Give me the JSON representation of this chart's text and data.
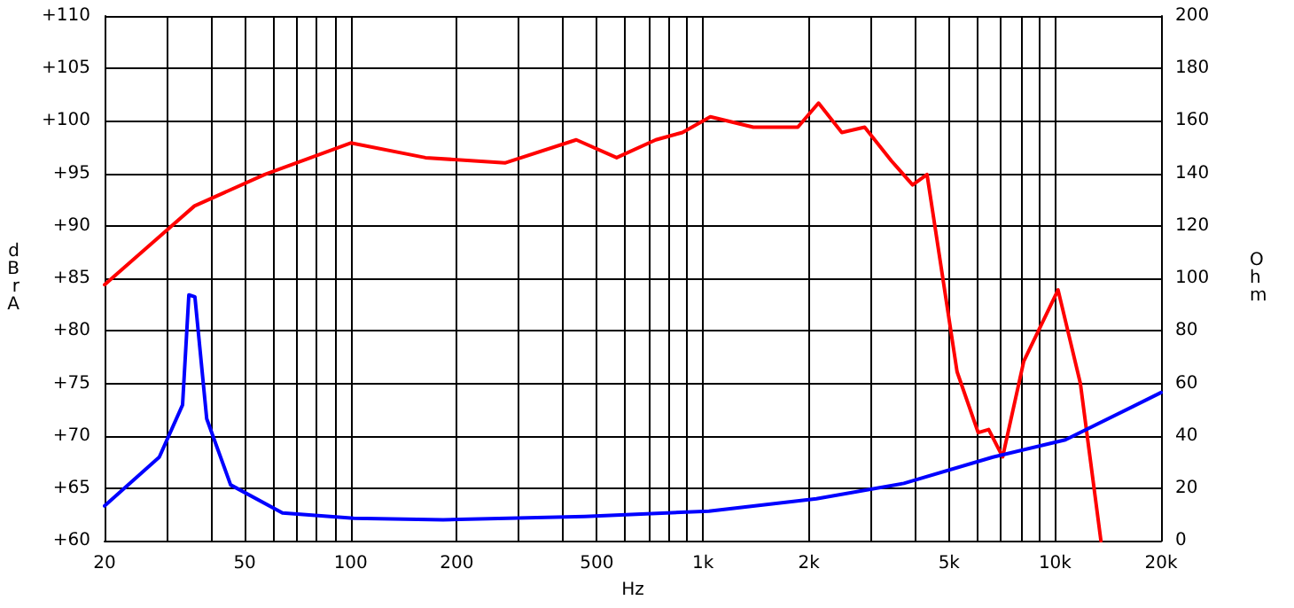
{
  "chart_data": {
    "type": "line",
    "xlabel": "Hz",
    "ylabel": "dBrA",
    "y2label": "Ohm",
    "log": "x",
    "grid": true,
    "marker": "none",
    "line_style": "solid",
    "xlim": [
      20,
      20000
    ],
    "xticks": [
      {
        "value": 20,
        "label": "20"
      },
      {
        "value": 30,
        "label": null
      },
      {
        "value": 40,
        "label": null
      },
      {
        "value": 50,
        "label": "50"
      },
      {
        "value": 60,
        "label": null
      },
      {
        "value": 70,
        "label": null
      },
      {
        "value": 80,
        "label": null
      },
      {
        "value": 90,
        "label": null
      },
      {
        "value": 100,
        "label": "100"
      },
      {
        "value": 200,
        "label": "200"
      },
      {
        "value": 300,
        "label": null
      },
      {
        "value": 400,
        "label": null
      },
      {
        "value": 500,
        "label": "500"
      },
      {
        "value": 600,
        "label": null
      },
      {
        "value": 700,
        "label": null
      },
      {
        "value": 800,
        "label": null
      },
      {
        "value": 900,
        "label": null
      },
      {
        "value": 1000,
        "label": "1k"
      },
      {
        "value": 2000,
        "label": "2k"
      },
      {
        "value": 3000,
        "label": null
      },
      {
        "value": 4000,
        "label": null
      },
      {
        "value": 5000,
        "label": "5k"
      },
      {
        "value": 6000,
        "label": null
      },
      {
        "value": 7000,
        "label": null
      },
      {
        "value": 8000,
        "label": null
      },
      {
        "value": 9000,
        "label": null
      },
      {
        "value": 10000,
        "label": "10k"
      },
      {
        "value": 20000,
        "label": "20k"
      }
    ],
    "ylim": [
      60,
      110
    ],
    "yticks": [
      {
        "value": 60,
        "label": "+60"
      },
      {
        "value": 65,
        "label": "+65"
      },
      {
        "value": 70,
        "label": "+70"
      },
      {
        "value": 75,
        "label": "+75"
      },
      {
        "value": 80,
        "label": "+80"
      },
      {
        "value": 85,
        "label": "+85"
      },
      {
        "value": 90,
        "label": "+90"
      },
      {
        "value": 95,
        "label": "+95"
      },
      {
        "value": 100,
        "label": "+100"
      },
      {
        "value": 105,
        "label": "+105"
      },
      {
        "value": 110,
        "label": "+110"
      }
    ],
    "y2lim": [
      0,
      200
    ],
    "y2ticks": [
      0,
      20,
      40,
      60,
      80,
      100,
      120,
      140,
      160,
      180,
      200
    ],
    "series": [
      {
        "color": "#ff0000",
        "x": [
          20,
          36,
          57,
          100,
          163,
          274,
          437,
          569,
          735,
          875,
          1050,
          1390,
          1860,
          2130,
          2480,
          2880,
          3430,
          3940,
          4330,
          5270,
          6050,
          6480,
          7100,
          8150,
          10200,
          11800,
          13500
        ],
        "values": [
          84.4,
          91.9,
          94.9,
          97.9,
          96.5,
          96,
          98.2,
          96.5,
          98.2,
          98.9,
          100.4,
          99.4,
          99.4,
          101.7,
          98.9,
          99.4,
          96.2,
          93.9,
          94.9,
          76.1,
          70.3,
          70.6,
          68,
          77.1,
          83.9,
          75,
          60
        ]
      },
      {
        "color": "#0000ff",
        "axis": "y2",
        "x": [
          20,
          28.6,
          33.3,
          34.7,
          36.1,
          39,
          45.6,
          64,
          102,
          183,
          462,
          1040,
          2100,
          3720,
          6660,
          10700,
          20000
        ],
        "values": [
          13.3,
          31.9,
          51.8,
          93.7,
          93,
          46.5,
          21.3,
          10.6,
          8.6,
          8,
          9.3,
          11.3,
          16,
          21.9,
          31.9,
          38.5,
          56.5
        ]
      }
    ]
  }
}
